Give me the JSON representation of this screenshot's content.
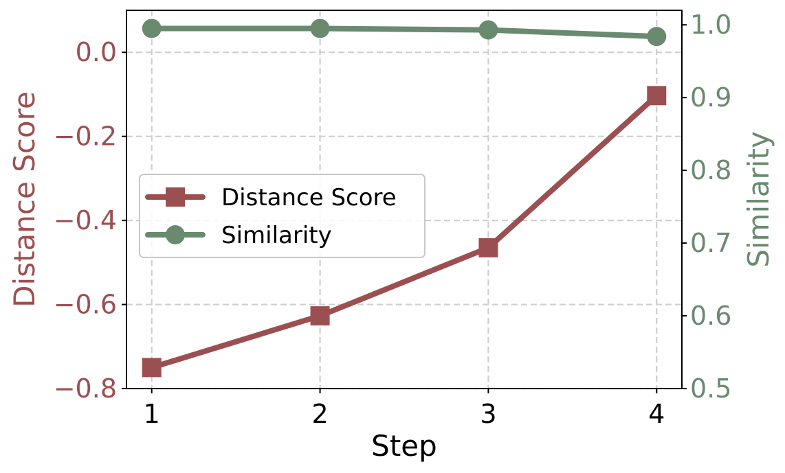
{
  "chart_data": {
    "type": "line",
    "xlabel": "Step",
    "x": [
      1,
      2,
      3,
      4
    ],
    "x_ticks": [
      "1",
      "2",
      "3",
      "4"
    ],
    "grid": true,
    "legend_placement": "center-left",
    "series": [
      {
        "name": "Distance Score",
        "axis": "left",
        "marker": "square",
        "color": "#9c4f50",
        "values": [
          -0.75,
          -0.627,
          -0.465,
          -0.103
        ]
      },
      {
        "name": "Similarity",
        "axis": "right",
        "marker": "circle",
        "color": "#698a6f",
        "values": [
          0.995,
          0.995,
          0.993,
          0.984
        ]
      }
    ],
    "y_left": {
      "label": "Distance Score",
      "lim": [
        -0.8,
        0.1
      ],
      "ticks": [
        -0.8,
        -0.6,
        -0.4,
        -0.2,
        0.0
      ],
      "tick_labels": [
        "−0.8",
        "−0.6",
        "−0.4",
        "−0.2",
        "0.0"
      ],
      "color": "#9c4f50"
    },
    "y_right": {
      "label": "Similarity",
      "lim": [
        0.5,
        1.02
      ],
      "ticks": [
        0.5,
        0.6,
        0.7,
        0.8,
        0.9,
        1.0
      ],
      "tick_labels": [
        "0.5",
        "0.6",
        "0.7",
        "0.8",
        "0.9",
        "1.0"
      ],
      "color": "#698a6f"
    }
  }
}
